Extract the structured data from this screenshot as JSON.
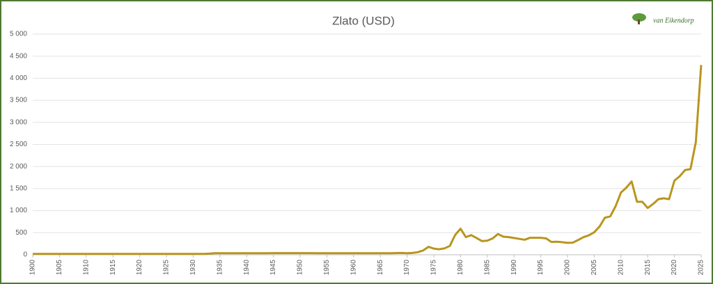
{
  "chart_data": {
    "type": "line",
    "title": "Zlato (USD)",
    "logo_text": "van Eikendorp",
    "x": [
      1900,
      1901,
      1902,
      1903,
      1904,
      1905,
      1906,
      1907,
      1908,
      1909,
      1910,
      1911,
      1912,
      1913,
      1914,
      1915,
      1916,
      1917,
      1918,
      1919,
      1920,
      1921,
      1922,
      1923,
      1924,
      1925,
      1926,
      1927,
      1928,
      1929,
      1930,
      1931,
      1932,
      1933,
      1934,
      1935,
      1936,
      1937,
      1938,
      1939,
      1940,
      1941,
      1942,
      1943,
      1944,
      1945,
      1946,
      1947,
      1948,
      1949,
      1950,
      1951,
      1952,
      1953,
      1954,
      1955,
      1956,
      1957,
      1958,
      1959,
      1960,
      1961,
      1962,
      1963,
      1964,
      1965,
      1966,
      1967,
      1968,
      1969,
      1970,
      1971,
      1972,
      1973,
      1974,
      1975,
      1976,
      1977,
      1978,
      1979,
      1980,
      1981,
      1982,
      1983,
      1984,
      1985,
      1986,
      1987,
      1988,
      1989,
      1990,
      1991,
      1992,
      1993,
      1994,
      1995,
      1996,
      1997,
      1998,
      1999,
      2000,
      2001,
      2002,
      2003,
      2004,
      2005,
      2006,
      2007,
      2008,
      2009,
      2010,
      2011,
      2012,
      2013,
      2014,
      2015,
      2016,
      2017,
      2018,
      2019,
      2020,
      2021,
      2022,
      2023,
      2024,
      2025
    ],
    "series": [
      {
        "name": "Zlato",
        "color": "#b8961e",
        "values": [
          20.67,
          20.67,
          20.67,
          20.67,
          20.67,
          20.67,
          20.67,
          20.67,
          20.67,
          20.67,
          20.67,
          20.67,
          20.67,
          20.67,
          20.67,
          20.67,
          20.67,
          20.67,
          20.67,
          20.67,
          20.67,
          20.67,
          20.67,
          20.67,
          20.67,
          20.67,
          20.67,
          20.67,
          20.67,
          20.67,
          20.67,
          20.67,
          20.67,
          26,
          35,
          35,
          35,
          35,
          35,
          35,
          35,
          35,
          35,
          35,
          35,
          38,
          38,
          38,
          38,
          38,
          38,
          38,
          38,
          35,
          35,
          35,
          35,
          35,
          35,
          35,
          35,
          35,
          35,
          35,
          35,
          35,
          35,
          35,
          39,
          41,
          36,
          41,
          58,
          97,
          180,
          140,
          125,
          145,
          200,
          450,
          590,
          400,
          445,
          380,
          310,
          320,
          370,
          470,
          410,
          400,
          380,
          360,
          340,
          385,
          385,
          385,
          370,
          290,
          295,
          285,
          270,
          275,
          335,
          400,
          440,
          510,
          640,
          840,
          870,
          1100,
          1410,
          1520,
          1660,
          1200,
          1200,
          1060,
          1150,
          1260,
          1280,
          1260,
          1680,
          1780,
          1920,
          1940,
          2550,
          4300
        ]
      }
    ],
    "xlim": [
      1900,
      2025
    ],
    "xticks": [
      1900,
      1905,
      1910,
      1915,
      1920,
      1925,
      1930,
      1935,
      1940,
      1945,
      1950,
      1955,
      1960,
      1965,
      1970,
      1975,
      1980,
      1985,
      1990,
      1995,
      2000,
      2005,
      2010,
      2015,
      2020,
      2025
    ],
    "ylim": [
      0,
      5000
    ],
    "yticks": [
      0,
      500,
      {
        "value": 1000,
        "label": "1 000"
      },
      {
        "value": 1500,
        "label": "1 500"
      },
      {
        "value": 2000,
        "label": "2 000"
      },
      {
        "value": 2500,
        "label": "2 500"
      },
      {
        "value": 3000,
        "label": "3 000"
      },
      {
        "value": 3500,
        "label": "3 500"
      },
      {
        "value": 4000,
        "label": "4 000"
      },
      {
        "value": 4500,
        "label": "4 500"
      },
      {
        "value": 5000,
        "label": "5 000"
      }
    ],
    "grid": true
  }
}
